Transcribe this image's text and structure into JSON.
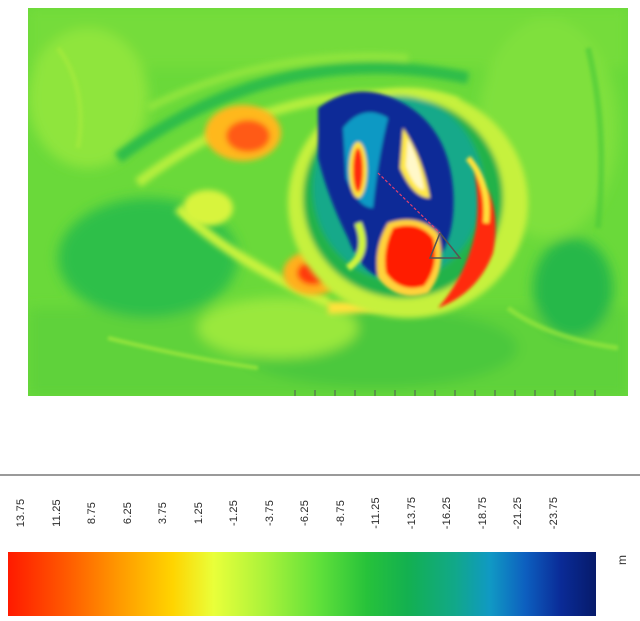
{
  "colorbar": {
    "labels": [
      "13.75",
      "11.25",
      "8.75",
      "6.25",
      "3.75",
      "1.25",
      "-1.25",
      "-3.75",
      "-6.25",
      "-8.75",
      "-11.25",
      "-13.75",
      "-16.25",
      "-18.75",
      "-21.25",
      "-23.75"
    ],
    "unit": "m",
    "gradient_colors": [
      "#ff1a00",
      "#ff9a00",
      "#ffd400",
      "#e9ff3a",
      "#5fe03a",
      "#13b050",
      "#1099c4",
      "#0a2b97"
    ]
  },
  "heatmap_colors": {
    "background": "#6ad93a",
    "high": "#ff1a00",
    "mid_high": "#ffd400",
    "mid": "#13b050",
    "low": "#1099c4",
    "lowest": "#0a2b97"
  }
}
